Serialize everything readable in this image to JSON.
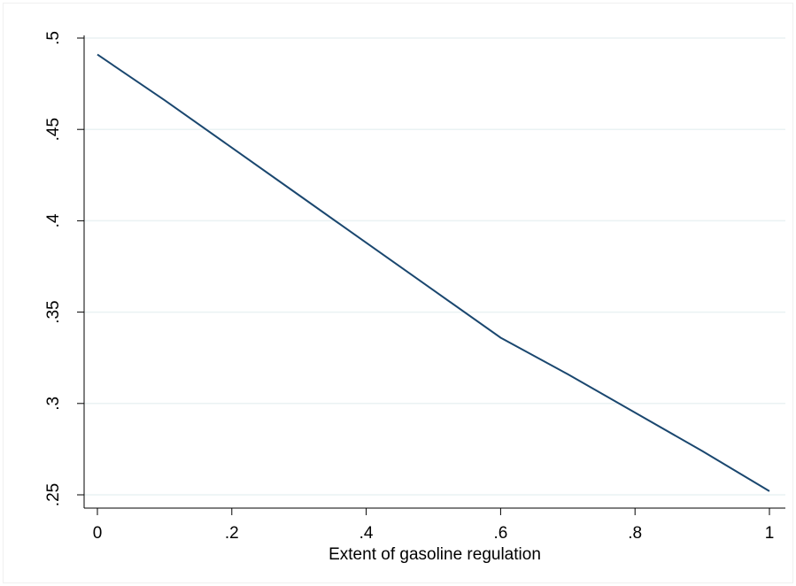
{
  "chart_data": {
    "type": "line",
    "title": "",
    "xlabel": "Extent of gasoline regulation",
    "ylabel": "",
    "xlim": [
      0,
      1
    ],
    "ylim": [
      0.25,
      0.5
    ],
    "x_ticks": [
      0,
      0.2,
      0.4,
      0.6,
      0.8,
      1
    ],
    "x_tick_labels": [
      "0",
      ".2",
      ".4",
      ".6",
      ".8",
      "1"
    ],
    "y_ticks": [
      0.25,
      0.3,
      0.35,
      0.4,
      0.45,
      0.5
    ],
    "y_tick_labels": [
      ".25",
      ".3",
      ".35",
      ".4",
      ".45",
      ".5"
    ],
    "grid": "horizontal",
    "legend": "none",
    "series": [
      {
        "color": "#1a476f",
        "x": [
          0,
          0.1,
          0.2,
          0.3,
          0.4,
          0.5,
          0.6,
          0.7,
          0.8,
          0.9,
          1.0
        ],
        "values": [
          0.491,
          0.466,
          0.44,
          0.414,
          0.388,
          0.362,
          0.336,
          0.316,
          0.295,
          0.274,
          0.252
        ]
      }
    ],
    "colors": {
      "line": "#1a476f",
      "grid": "#eaf2f3",
      "axis": "#000000"
    }
  }
}
